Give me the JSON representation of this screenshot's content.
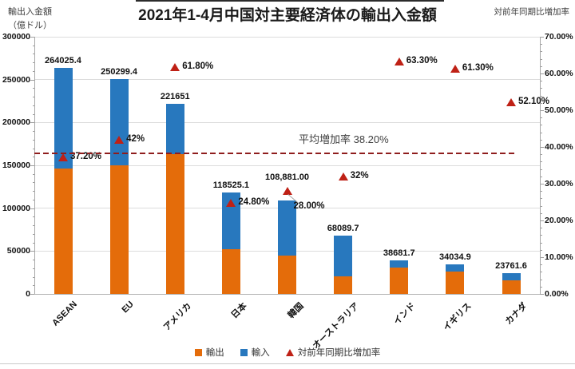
{
  "title": "2021年1-4月中国対主要経済体の輸出入金額",
  "axes": {
    "left": {
      "label1": "輸出入金額",
      "label2": "（億ドル）"
    },
    "right": {
      "label": "対前年同期比増加率"
    }
  },
  "legend": {
    "items": [
      {
        "label": "輸出",
        "marker": "square",
        "color": "#E46C0A"
      },
      {
        "label": "輸入",
        "marker": "square",
        "color": "#2878BE"
      },
      {
        "label": "対前年同期比増加率",
        "marker": "triangle",
        "color": "#BF2116"
      }
    ]
  },
  "colors": {
    "export_orange": "#E46C0A",
    "import_blue": "#2878BE",
    "marker_red": "#BF2116",
    "average_line_red": "#8F1D1D",
    "gridline_gray": "#DCDCDC"
  },
  "chart_data": {
    "type": "bar",
    "stacked": true,
    "title": "2021年1-4月中国対主要経済体の輸出入金額",
    "categories": [
      "ASEAN",
      "EU",
      "アメリカ",
      "日本",
      "韓国",
      "オーストラリア",
      "インド",
      "イギリス",
      "カナダ"
    ],
    "series": [
      {
        "name": "輸出",
        "color": "#E46C0A",
        "values": [
          146000,
          150000,
          163300,
          52400,
          44700,
          20800,
          30300,
          26100,
          15800
        ]
      },
      {
        "name": "輸入",
        "color": "#2878BE",
        "values": [
          118025.4,
          100299.4,
          58351,
          66125.1,
          64181,
          47289.7,
          8381.7,
          7934.9,
          7961.6
        ]
      }
    ],
    "totals": [
      264025.4,
      250299.4,
      221651,
      118525.1,
      108881,
      68089.7,
      38681.7,
      34034.9,
      23761.6
    ],
    "total_labels": [
      "264025.4",
      "250299.4",
      "221651",
      "118525.1",
      "108,881.00",
      "68089.7",
      "38681.7",
      "34034.9",
      "23761.6"
    ],
    "growth_pct": [
      37.2,
      42,
      61.8,
      24.8,
      28,
      32,
      63.3,
      61.3,
      52.1
    ],
    "growth_labels": [
      "37.20%",
      "42%",
      "61.80%",
      "24.80%",
      "28.00%",
      "32%",
      "63.30%",
      "61.30%",
      "52.10%"
    ],
    "growth_callout": [
      false,
      false,
      false,
      false,
      true,
      false,
      false,
      false,
      false
    ],
    "left_axis_ticks": [
      "300000",
      "250000",
      "200000",
      "150000",
      "100000",
      "50000",
      "0"
    ],
    "right_axis_ticks": [
      "70.00%",
      "60.00%",
      "50.00%",
      "40.00%",
      "30.00%",
      "20.00%",
      "10.00%",
      "0.00%"
    ],
    "ylim_left": [
      0,
      300000
    ],
    "ylim_right": [
      0,
      70
    ],
    "average_line": {
      "label": "平均増加率  38.20%",
      "value": 38.2
    },
    "ylabel_left": "輸出入金額（億ドル）",
    "ylabel_right": "対前年同期比増加率",
    "grid": true,
    "legend_position": "bottom"
  }
}
